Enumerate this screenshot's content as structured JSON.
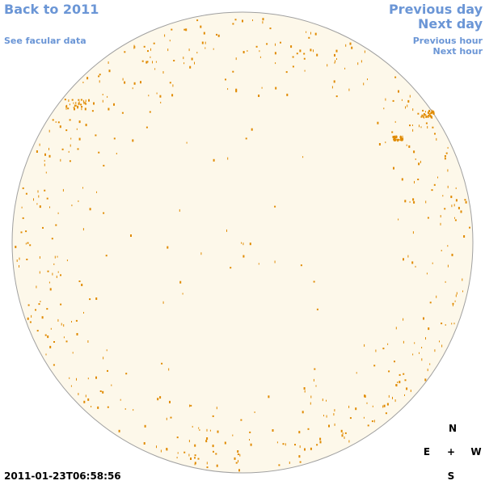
{
  "nav": {
    "back_label": "Back to 2011",
    "facular_label": "See facular data",
    "prev_day_label": "Previous day",
    "next_day_label": "Next day",
    "prev_hour_label": "Previous hour",
    "next_hour_label": "Next hour"
  },
  "compass": {
    "north": "N",
    "east": "E",
    "center": "+",
    "west": "W",
    "south": "S"
  },
  "timestamp": "2011-01-23T06:58:56",
  "colors": {
    "link": "#6b96d6",
    "disk_fill": "#fdf8ea",
    "disk_outline": "#a0a0a0",
    "facula": "#e08a00"
  }
}
